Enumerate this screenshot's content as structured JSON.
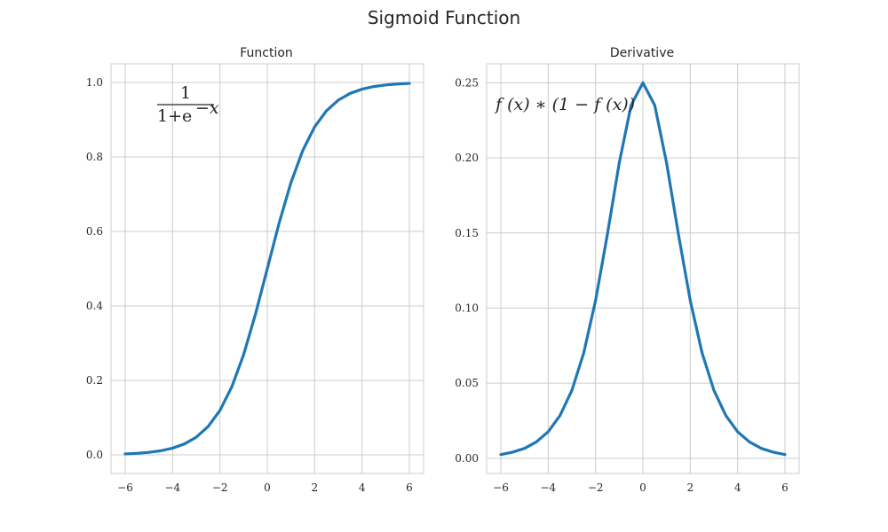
{
  "figure_title": "Sigmoid Function",
  "colors": {
    "line": "#1f77b4",
    "grid": "#cccccc",
    "text": "#262626"
  },
  "chart_data": [
    {
      "type": "line",
      "title": "Function",
      "xlabel": "",
      "ylabel": "",
      "xlim": [
        -6.6,
        6.6
      ],
      "ylim": [
        -0.05,
        1.05
      ],
      "xticks": [
        -6,
        -4,
        -2,
        0,
        2,
        4,
        6
      ],
      "xtick_labels": [
        "−6",
        "−4",
        "−2",
        "0",
        "2",
        "4",
        "6"
      ],
      "yticks": [
        0.0,
        0.2,
        0.4,
        0.6,
        0.8,
        1.0
      ],
      "ytick_labels": [
        "0.0",
        "0.2",
        "0.4",
        "0.6",
        "0.8",
        "1.0"
      ],
      "grid": true,
      "annotation": {
        "numerator": "1",
        "denominator_base": "1+e",
        "denominator_exp": "−x"
      },
      "series": [
        {
          "x": [
            -6,
            -5.5,
            -5,
            -4.5,
            -4,
            -3.5,
            -3,
            -2.5,
            -2,
            -1.5,
            -1,
            -0.5,
            0,
            0.5,
            1,
            1.5,
            2,
            2.5,
            3,
            3.5,
            4,
            4.5,
            5,
            5.5,
            6
          ],
          "y": [
            0.0025,
            0.0041,
            0.0067,
            0.011,
            0.018,
            0.0293,
            0.0474,
            0.0759,
            0.1192,
            0.1824,
            0.2689,
            0.3775,
            0.5,
            0.6225,
            0.7311,
            0.8176,
            0.8808,
            0.9241,
            0.9526,
            0.9707,
            0.982,
            0.989,
            0.9933,
            0.9959,
            0.9975
          ]
        }
      ]
    },
    {
      "type": "line",
      "title": "Derivative",
      "xlabel": "",
      "ylabel": "",
      "xlim": [
        -6.6,
        6.6
      ],
      "ylim": [
        -0.0101,
        0.2626
      ],
      "xticks": [
        -6,
        -4,
        -2,
        0,
        2,
        4,
        6
      ],
      "xtick_labels": [
        "−6",
        "−4",
        "−2",
        "0",
        "2",
        "4",
        "6"
      ],
      "yticks": [
        0.0,
        0.05,
        0.1,
        0.15,
        0.2,
        0.25
      ],
      "ytick_labels": [
        "0.00",
        "0.05",
        "0.10",
        "0.15",
        "0.20",
        "0.25"
      ],
      "grid": true,
      "annotation": {
        "text": "f (x) ∗ (1 − f (x))"
      },
      "series": [
        {
          "x": [
            -6,
            -5.5,
            -5,
            -4.5,
            -4,
            -3.5,
            -3,
            -2.5,
            -2,
            -1.5,
            -1,
            -0.5,
            0,
            0.5,
            1,
            1.5,
            2,
            2.5,
            3,
            3.5,
            4,
            4.5,
            5,
            5.5,
            6
          ],
          "y": [
            0.0025,
            0.0041,
            0.0066,
            0.0109,
            0.0177,
            0.0285,
            0.0452,
            0.0701,
            0.105,
            0.1491,
            0.1966,
            0.235,
            0.25,
            0.235,
            0.1966,
            0.1491,
            0.105,
            0.0701,
            0.0452,
            0.0285,
            0.0177,
            0.0109,
            0.0066,
            0.0041,
            0.0025
          ]
        }
      ]
    }
  ]
}
